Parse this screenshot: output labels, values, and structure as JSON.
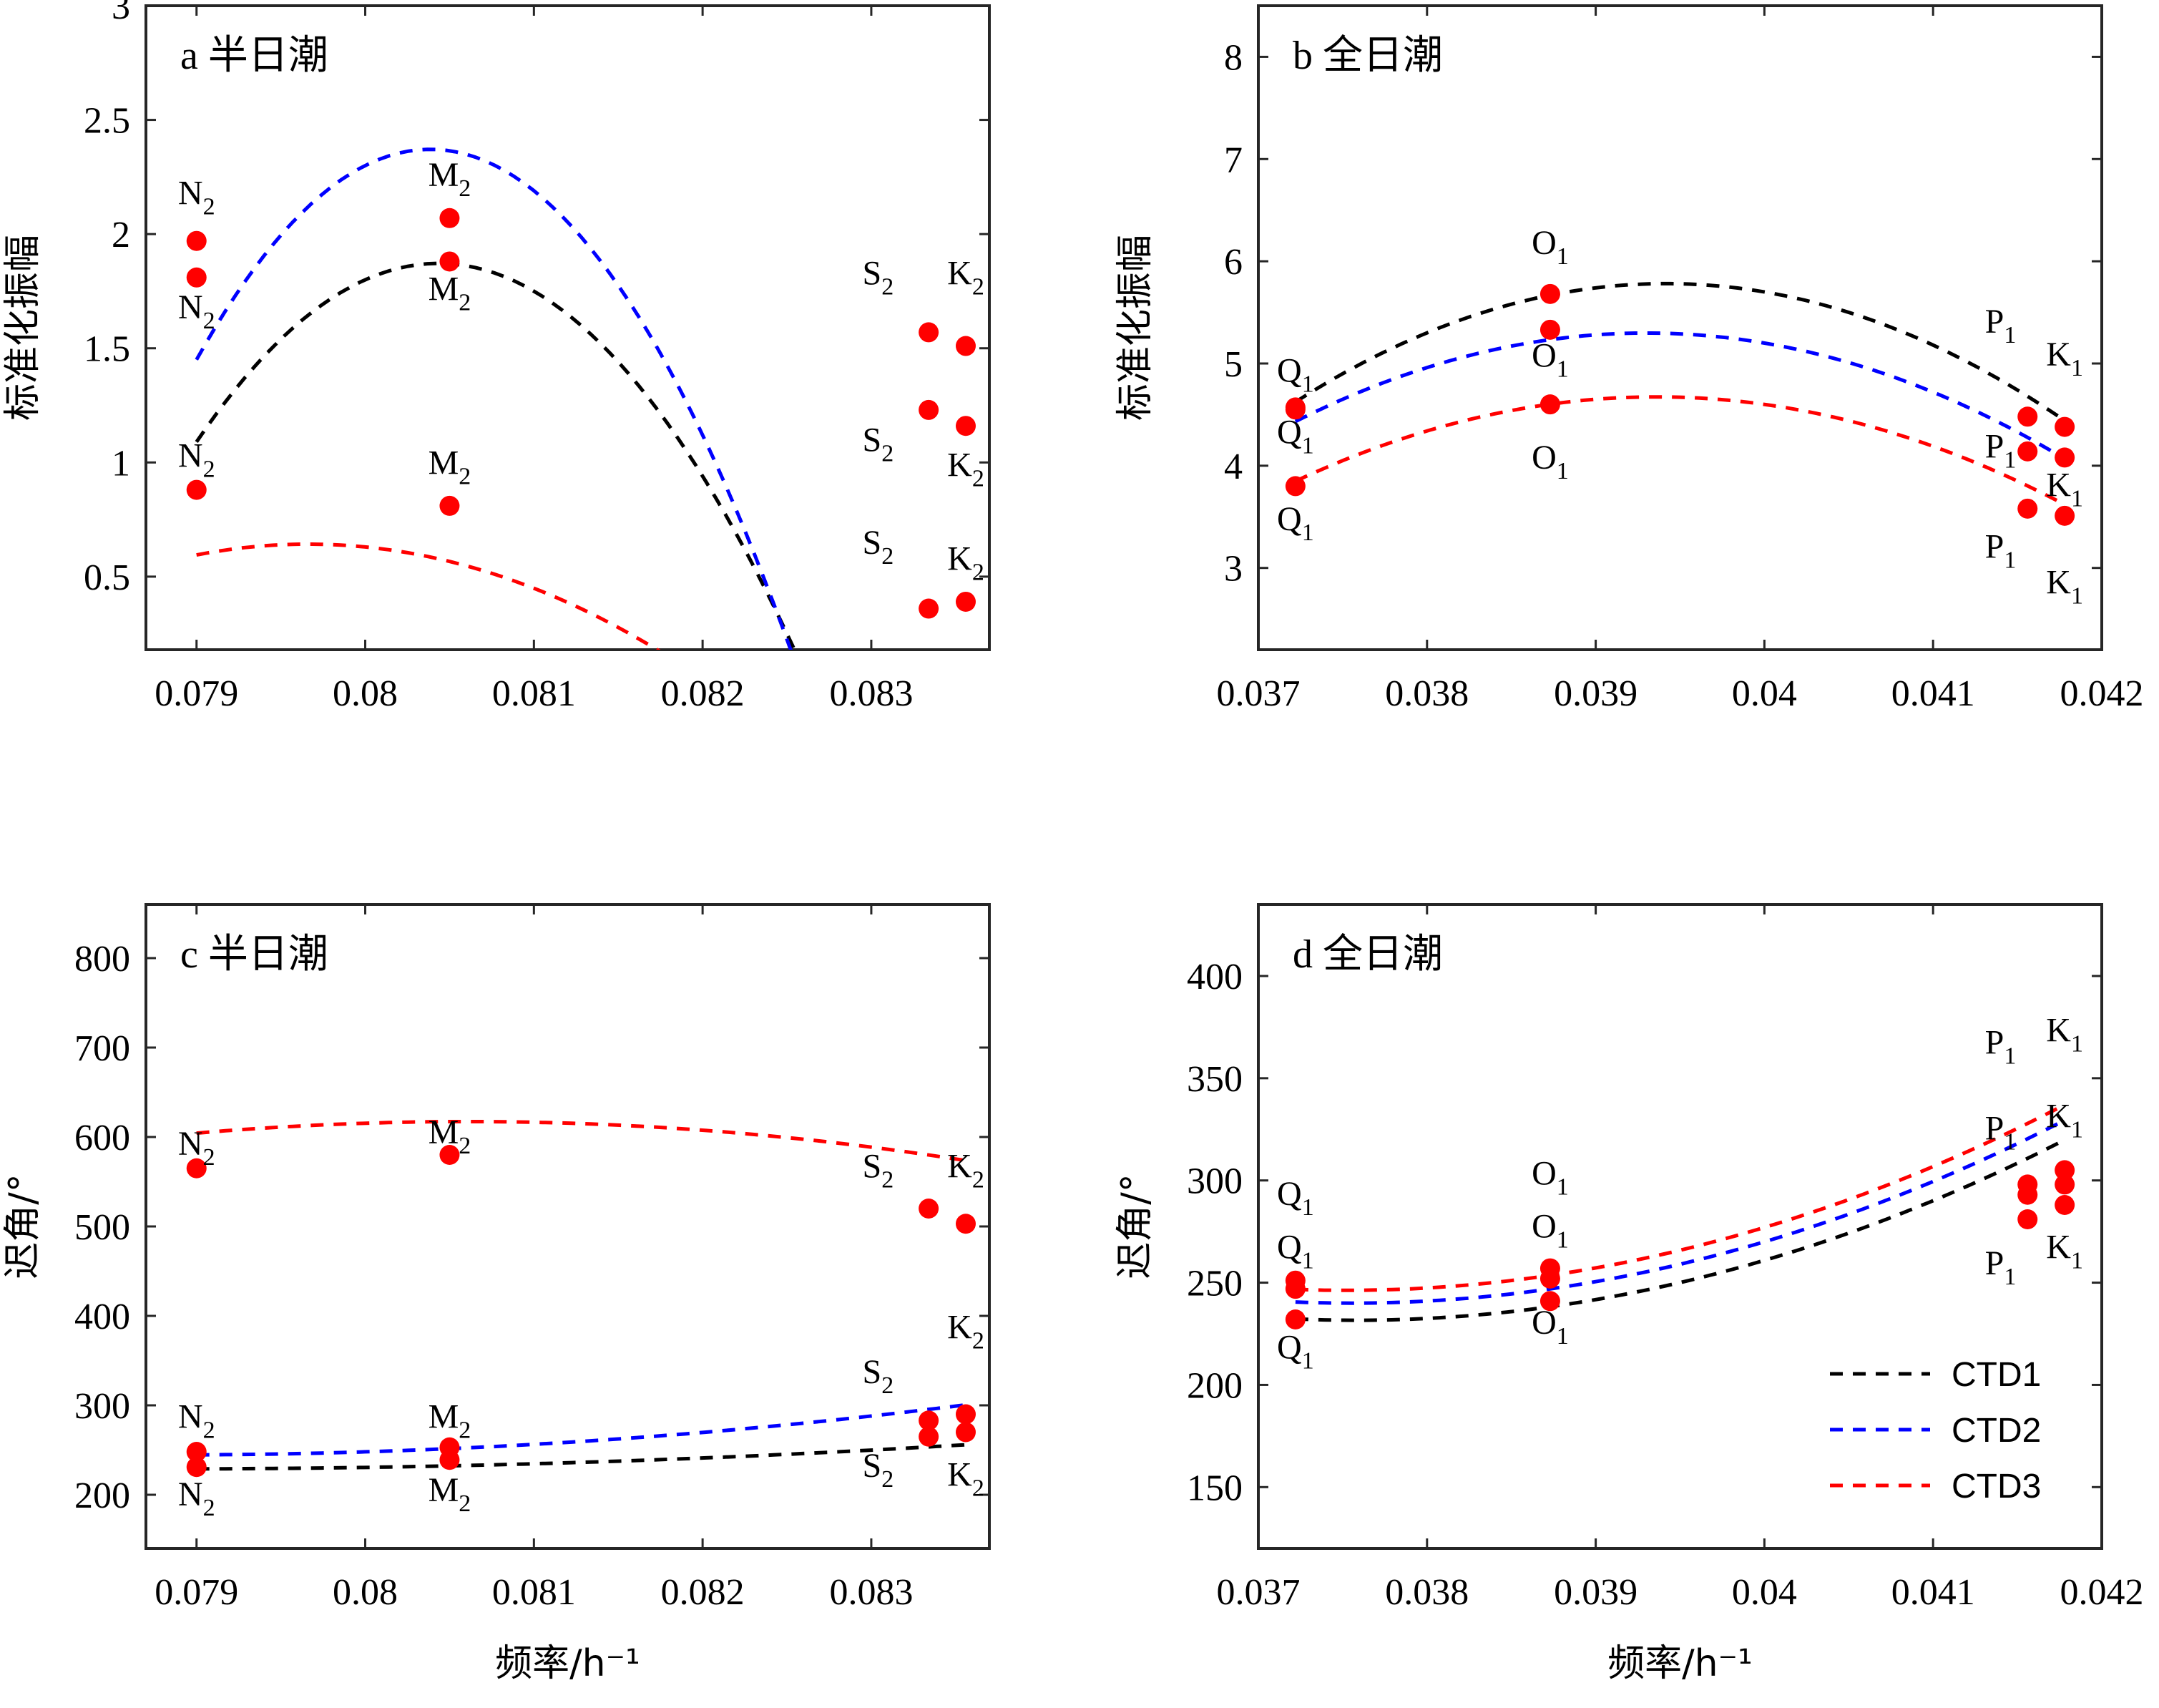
{
  "chart_data": [
    {
      "id": "a",
      "type": "scatter",
      "title": "a 半日潮",
      "xlabel": "",
      "ylabel": "标准化振幅",
      "xlim": [
        0.0787,
        0.0837
      ],
      "ylim": [
        0.18,
        3.0
      ],
      "xticks": [
        0.079,
        0.08,
        0.081,
        0.082,
        0.083
      ],
      "xticklabels": [
        "0.079",
        "0.08",
        "0.081",
        "0.082",
        "0.083"
      ],
      "yticks": [
        0.5,
        1,
        1.5,
        2,
        2.5,
        3
      ],
      "yticklabels": [
        "0.5",
        "1",
        "1.5",
        "2",
        "2.5",
        "3"
      ],
      "x": [
        0.079,
        0.0805,
        0.08334,
        0.08356
      ],
      "series": [
        {
          "name": "CTD1",
          "values": [
            1.97,
            2.07,
            1.57,
            1.51
          ],
          "fit": [
            -380000,
            61130,
            -2456.6
          ]
        },
        {
          "name": "CTD2",
          "values": [
            1.81,
            1.88,
            1.23,
            1.16
          ],
          "fit": [
            -480000,
            77170,
            -3099.3
          ]
        },
        {
          "name": "CTD3",
          "values": [
            0.88,
            0.81,
            0.36,
            0.39
          ],
          "fit": [
            -108000,
            17207,
            -684.73
          ]
        }
      ],
      "labels": [
        {
          "text": "N",
          "sub": "2",
          "x": 0.079,
          "y": 2.13
        },
        {
          "text": "N",
          "sub": "2",
          "x": 0.079,
          "y": 1.63
        },
        {
          "text": "N",
          "sub": "2",
          "x": 0.079,
          "y": 0.98
        },
        {
          "text": "M",
          "sub": "2",
          "x": 0.0805,
          "y": 2.21
        },
        {
          "text": "M",
          "sub": "2",
          "x": 0.0805,
          "y": 1.71
        },
        {
          "text": "M",
          "sub": "2",
          "x": 0.0805,
          "y": 0.95
        },
        {
          "text": "S",
          "sub": "2",
          "x": 0.08304,
          "y": 1.78
        },
        {
          "text": "K",
          "sub": "2",
          "x": 0.08356,
          "y": 1.78
        },
        {
          "text": "S",
          "sub": "2",
          "x": 0.08304,
          "y": 1.05
        },
        {
          "text": "K",
          "sub": "2",
          "x": 0.08356,
          "y": 0.94
        },
        {
          "text": "S",
          "sub": "2",
          "x": 0.08304,
          "y": 0.6
        },
        {
          "text": "K",
          "sub": "2",
          "x": 0.08356,
          "y": 0.53
        }
      ]
    },
    {
      "id": "b",
      "type": "scatter",
      "title": "b 全日潮",
      "xlabel": "",
      "ylabel": "标准化振幅",
      "xlim": [
        0.037,
        0.042
      ],
      "ylim": [
        2.2,
        8.5
      ],
      "xticks": [
        0.037,
        0.038,
        0.039,
        0.04,
        0.041,
        0.042
      ],
      "xticklabels": [
        "0.037",
        "0.038",
        "0.039",
        "0.04",
        "0.041",
        "0.042"
      ],
      "yticks": [
        3,
        4,
        5,
        6,
        7,
        8
      ],
      "yticklabels": [
        "3",
        "4",
        "5",
        "6",
        "7",
        "8"
      ],
      "x": [
        0.03722,
        0.03873,
        0.04156,
        0.04178
      ],
      "series": [
        {
          "name": "CTD1",
          "values": [
            4.57,
            5.68,
            4.48,
            4.38
          ],
          "fit": [
            -240000,
            18920,
            -367.1
          ]
        },
        {
          "name": "CTD2",
          "values": [
            4.55,
            5.33,
            4.14,
            4.08
          ],
          "fit": [
            -200000,
            15720,
            -303.6
          ]
        },
        {
          "name": "CTD3",
          "values": [
            3.8,
            4.6,
            3.58,
            3.51
          ],
          "fit": [
            -180000,
            14170,
            -274.2
          ]
        }
      ],
      "labels": [
        {
          "text": "Q",
          "sub": "1",
          "x": 0.03722,
          "y": 4.82
        },
        {
          "text": "Q",
          "sub": "1",
          "x": 0.03722,
          "y": 4.22
        },
        {
          "text": "Q",
          "sub": "1",
          "x": 0.03722,
          "y": 3.37
        },
        {
          "text": "O",
          "sub": "1",
          "x": 0.03873,
          "y": 6.07
        },
        {
          "text": "O",
          "sub": "1",
          "x": 0.03873,
          "y": 4.97
        },
        {
          "text": "O",
          "sub": "1",
          "x": 0.03873,
          "y": 3.97
        },
        {
          "text": "P",
          "sub": "1",
          "x": 0.0414,
          "y": 5.3
        },
        {
          "text": "K",
          "sub": "1",
          "x": 0.04178,
          "y": 4.98
        },
        {
          "text": "P",
          "sub": "1",
          "x": 0.0414,
          "y": 4.08
        },
        {
          "text": "K",
          "sub": "1",
          "x": 0.04178,
          "y": 3.7
        },
        {
          "text": "P",
          "sub": "1",
          "x": 0.0414,
          "y": 3.1
        },
        {
          "text": "K",
          "sub": "1",
          "x": 0.04178,
          "y": 2.75
        }
      ]
    },
    {
      "id": "c",
      "type": "scatter",
      "title": "c 半日潮",
      "xlabel": "频率/h⁻¹",
      "ylabel": "迟角/°",
      "xlim": [
        0.0787,
        0.0837
      ],
      "ylim": [
        140,
        860
      ],
      "xticks": [
        0.079,
        0.08,
        0.081,
        0.082,
        0.083
      ],
      "xticklabels": [
        "0.079",
        "0.08",
        "0.081",
        "0.082",
        "0.083"
      ],
      "yticks": [
        200,
        300,
        400,
        500,
        600,
        700,
        800
      ],
      "yticklabels": [
        "200",
        "300",
        "400",
        "500",
        "600",
        "700",
        "800"
      ],
      "x": [
        0.079,
        0.0805,
        0.08334,
        0.08356
      ],
      "series": [
        {
          "name": "CTD1",
          "values": [
            231,
            239,
            265,
            270
          ],
          "fit": [
            1200000,
            -189150,
            7682.6
          ]
        },
        {
          "name": "CTD2",
          "values": [
            248,
            253,
            283,
            290
          ],
          "fit": [
            2500000,
            -394150,
            15780
          ]
        },
        {
          "name": "CTD3",
          "values": [
            565,
            580,
            520,
            503
          ],
          "fit": [
            -5000000,
            806080,
            -31871
          ]
        }
      ],
      "labels": [
        {
          "text": "N",
          "sub": "2",
          "x": 0.079,
          "y": 580
        },
        {
          "text": "M",
          "sub": "2",
          "x": 0.0805,
          "y": 593
        },
        {
          "text": "S",
          "sub": "2",
          "x": 0.08304,
          "y": 555
        },
        {
          "text": "K",
          "sub": "2",
          "x": 0.08356,
          "y": 555
        },
        {
          "text": "K",
          "sub": "2",
          "x": 0.08356,
          "y": 375
        },
        {
          "text": "S",
          "sub": "2",
          "x": 0.08304,
          "y": 325
        },
        {
          "text": "N",
          "sub": "2",
          "x": 0.079,
          "y": 275
        },
        {
          "text": "M",
          "sub": "2",
          "x": 0.0805,
          "y": 275
        },
        {
          "text": "S",
          "sub": "2",
          "x": 0.08304,
          "y": 220
        },
        {
          "text": "K",
          "sub": "2",
          "x": 0.08356,
          "y": 210
        },
        {
          "text": "N",
          "sub": "2",
          "x": 0.079,
          "y": 188
        },
        {
          "text": "M",
          "sub": "2",
          "x": 0.0805,
          "y": 193
        }
      ]
    },
    {
      "id": "d",
      "type": "scatter",
      "title": "d 全日潮",
      "xlabel": "频率/h⁻¹",
      "ylabel": "迟角/°",
      "xlim": [
        0.037,
        0.042
      ],
      "ylim": [
        120,
        435
      ],
      "xticks": [
        0.037,
        0.038,
        0.039,
        0.04,
        0.041,
        0.042
      ],
      "xticklabels": [
        "0.037",
        "0.038",
        "0.039",
        "0.04",
        "0.041",
        "0.042"
      ],
      "yticks": [
        150,
        200,
        250,
        300,
        350,
        400
      ],
      "yticklabels": [
        "150",
        "200",
        "250",
        "300",
        "350",
        "400"
      ],
      "x": [
        0.03722,
        0.03873,
        0.04156,
        0.04178
      ],
      "series": [
        {
          "name": "CTD1",
          "values": [
            232,
            241,
            281,
            288
          ],
          "fit": [
            5000000,
            -375800,
            7292.9
          ]
        },
        {
          "name": "CTD2",
          "values": [
            247,
            252,
            293,
            298
          ],
          "fit": [
            5000000,
            -375500,
            7290
          ]
        },
        {
          "name": "CTD3",
          "values": [
            251,
            257,
            298,
            305
          ],
          "fit": [
            5000000,
            -375200,
            7285
          ]
        }
      ],
      "labels": [
        {
          "text": "P",
          "sub": "1",
          "x": 0.0414,
          "y": 362
        },
        {
          "text": "K",
          "sub": "1",
          "x": 0.04178,
          "y": 368
        },
        {
          "text": "P",
          "sub": "1",
          "x": 0.0414,
          "y": 320
        },
        {
          "text": "K",
          "sub": "1",
          "x": 0.04178,
          "y": 326
        },
        {
          "text": "Q",
          "sub": "1",
          "x": 0.03722,
          "y": 288
        },
        {
          "text": "O",
          "sub": "1",
          "x": 0.03873,
          "y": 298
        },
        {
          "text": "Q",
          "sub": "1",
          "x": 0.03722,
          "y": 262
        },
        {
          "text": "O",
          "sub": "1",
          "x": 0.03873,
          "y": 272
        },
        {
          "text": "P",
          "sub": "1",
          "x": 0.0414,
          "y": 254
        },
        {
          "text": "K",
          "sub": "1",
          "x": 0.04178,
          "y": 262
        },
        {
          "text": "O",
          "sub": "1",
          "x": 0.03873,
          "y": 225
        },
        {
          "text": "Q",
          "sub": "1",
          "x": 0.03722,
          "y": 213
        }
      ],
      "legend": {
        "position": "bottom-right",
        "entries": [
          "CTD1",
          "CTD2",
          "CTD3"
        ]
      }
    }
  ],
  "colors": {
    "CTD1": "#000000",
    "CTD2": "#0000ff",
    "CTD3": "#ff0000",
    "marker": "#ff0000"
  }
}
